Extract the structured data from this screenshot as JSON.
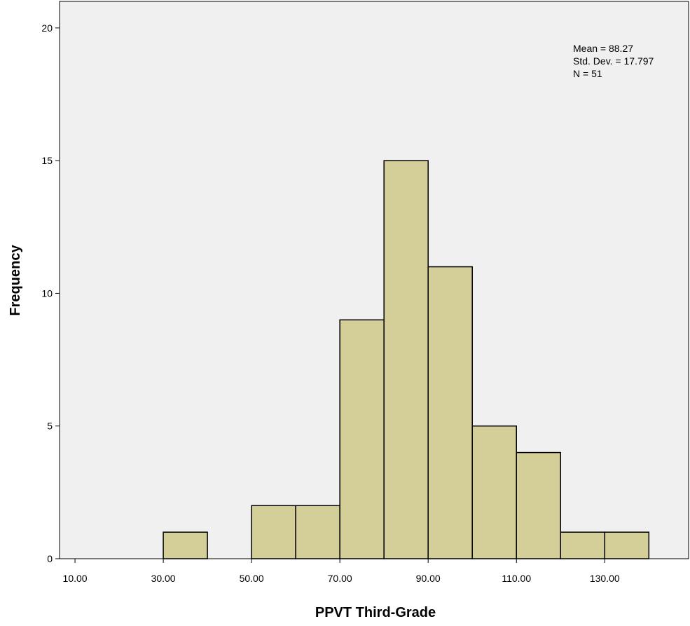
{
  "chart_data": {
    "type": "bar",
    "subtype": "histogram",
    "xlabel": "PPVT Third-Grade",
    "ylabel": "Frequency",
    "bins": [
      {
        "start": 30,
        "end": 40,
        "count": 1
      },
      {
        "start": 50,
        "end": 60,
        "count": 2
      },
      {
        "start": 60,
        "end": 70,
        "count": 2
      },
      {
        "start": 70,
        "end": 80,
        "count": 9
      },
      {
        "start": 80,
        "end": 90,
        "count": 15
      },
      {
        "start": 90,
        "end": 100,
        "count": 11
      },
      {
        "start": 100,
        "end": 110,
        "count": 5
      },
      {
        "start": 110,
        "end": 120,
        "count": 4
      },
      {
        "start": 120,
        "end": 130,
        "count": 1
      },
      {
        "start": 130,
        "end": 140,
        "count": 1
      }
    ],
    "xlim": [
      6.5,
      149
    ],
    "ylim": [
      0,
      21
    ],
    "x_ticks": [
      10,
      30,
      50,
      70,
      90,
      110,
      130
    ],
    "x_tick_labels": [
      "10.00",
      "30.00",
      "50.00",
      "70.00",
      "90.00",
      "110.00",
      "130.00"
    ],
    "y_ticks": [
      0,
      5,
      10,
      15,
      20
    ],
    "y_tick_labels": [
      "0",
      "5",
      "10",
      "15",
      "20"
    ],
    "stats": {
      "mean": "Mean = 88.27",
      "std_dev": "Std. Dev. = 17.797",
      "n": "N = 51"
    },
    "grid": false,
    "legend": "none",
    "colors": {
      "plot_background": "#f0f0f0",
      "bar_fill": "#d4cf98",
      "bar_stroke": "#000000"
    }
  }
}
